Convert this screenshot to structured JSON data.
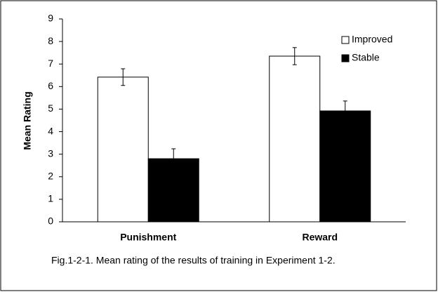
{
  "chart_data": {
    "type": "bar",
    "categories": [
      "Punishment",
      "Reward"
    ],
    "series": [
      {
        "name": "Improved",
        "color": "#ffffff",
        "values": [
          6.42,
          7.35
        ],
        "errors": [
          0.37,
          0.38
        ]
      },
      {
        "name": "Stable",
        "color": "#000000",
        "values": [
          2.8,
          4.92
        ],
        "errors": [
          0.44,
          0.44
        ]
      }
    ],
    "y_label": "Mean Rating",
    "ylim": [
      0,
      9
    ],
    "yticks": [
      0,
      1,
      2,
      3,
      4,
      5,
      6,
      7,
      8,
      9
    ],
    "grid": false,
    "legend": "top-right",
    "caption": "Fig.1-2-1. Mean rating of the results of training in Experiment 1-2."
  }
}
